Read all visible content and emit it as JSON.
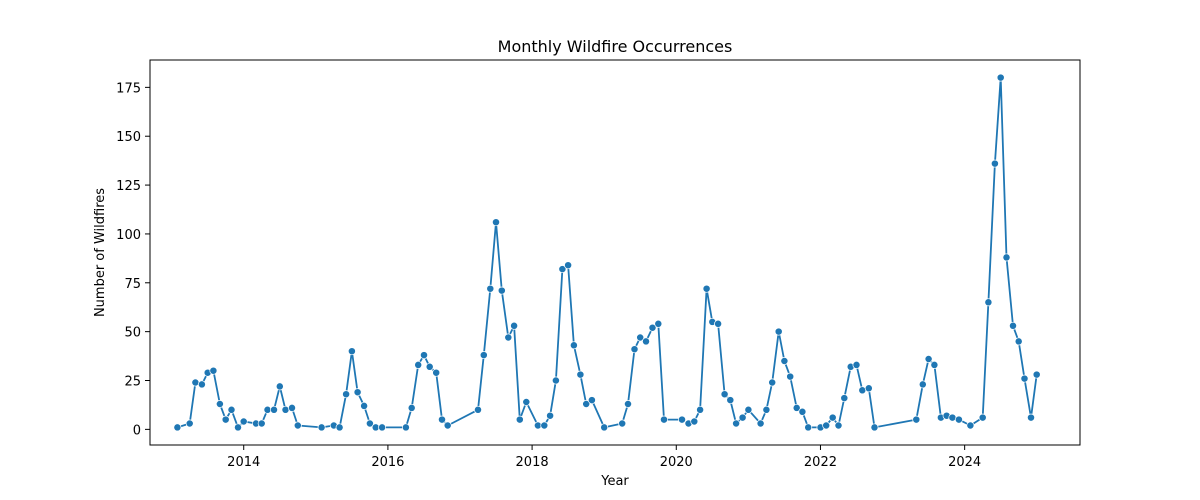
{
  "chart_data": {
    "type": "line",
    "title": "Monthly Wildfire Occurrences",
    "xlabel": "Year",
    "ylabel": "Number of Wildfires",
    "xlim": [
      2012.7,
      2025.6
    ],
    "ylim": [
      -8,
      189
    ],
    "x_ticks": [
      2014,
      2016,
      2018,
      2020,
      2022,
      2024
    ],
    "y_ticks": [
      0,
      25,
      50,
      75,
      100,
      125,
      150,
      175
    ],
    "grid": false,
    "marker": "circle",
    "color": "#1f77b4",
    "series": [
      {
        "points": [
          [
            2013.08,
            1
          ],
          [
            2013.25,
            3
          ],
          [
            2013.33,
            24
          ],
          [
            2013.42,
            23
          ],
          [
            2013.5,
            29
          ],
          [
            2013.58,
            30
          ],
          [
            2013.67,
            13
          ],
          [
            2013.75,
            5
          ],
          [
            2013.83,
            10
          ],
          [
            2013.92,
            1
          ],
          [
            2014.0,
            4
          ],
          [
            2014.17,
            3
          ],
          [
            2014.25,
            3
          ],
          [
            2014.33,
            10
          ],
          [
            2014.42,
            10
          ],
          [
            2014.5,
            22
          ],
          [
            2014.58,
            10
          ],
          [
            2014.67,
            11
          ],
          [
            2014.75,
            2
          ],
          [
            2015.08,
            1
          ],
          [
            2015.25,
            2
          ],
          [
            2015.33,
            1
          ],
          [
            2015.42,
            18
          ],
          [
            2015.5,
            40
          ],
          [
            2015.58,
            19
          ],
          [
            2015.67,
            12
          ],
          [
            2015.75,
            3
          ],
          [
            2015.83,
            1
          ],
          [
            2015.92,
            1
          ],
          [
            2016.25,
            1
          ],
          [
            2016.33,
            11
          ],
          [
            2016.42,
            33
          ],
          [
            2016.5,
            38
          ],
          [
            2016.58,
            32
          ],
          [
            2016.67,
            29
          ],
          [
            2016.75,
            5
          ],
          [
            2016.83,
            2
          ],
          [
            2017.25,
            10
          ],
          [
            2017.33,
            38
          ],
          [
            2017.42,
            72
          ],
          [
            2017.5,
            106
          ],
          [
            2017.58,
            71
          ],
          [
            2017.67,
            47
          ],
          [
            2017.75,
            53
          ],
          [
            2017.83,
            5
          ],
          [
            2017.92,
            14
          ],
          [
            2018.08,
            2
          ],
          [
            2018.17,
            2
          ],
          [
            2018.25,
            7
          ],
          [
            2018.33,
            25
          ],
          [
            2018.42,
            82
          ],
          [
            2018.5,
            84
          ],
          [
            2018.58,
            43
          ],
          [
            2018.67,
            28
          ],
          [
            2018.75,
            13
          ],
          [
            2018.83,
            15
          ],
          [
            2019.0,
            1
          ],
          [
            2019.25,
            3
          ],
          [
            2019.33,
            13
          ],
          [
            2019.42,
            41
          ],
          [
            2019.5,
            47
          ],
          [
            2019.58,
            45
          ],
          [
            2019.67,
            52
          ],
          [
            2019.75,
            54
          ],
          [
            2019.83,
            5
          ],
          [
            2020.08,
            5
          ],
          [
            2020.17,
            3
          ],
          [
            2020.25,
            4
          ],
          [
            2020.33,
            10
          ],
          [
            2020.42,
            72
          ],
          [
            2020.5,
            55
          ],
          [
            2020.58,
            54
          ],
          [
            2020.67,
            18
          ],
          [
            2020.75,
            15
          ],
          [
            2020.83,
            3
          ],
          [
            2020.92,
            6
          ],
          [
            2021.0,
            10
          ],
          [
            2021.17,
            3
          ],
          [
            2021.25,
            10
          ],
          [
            2021.33,
            24
          ],
          [
            2021.42,
            50
          ],
          [
            2021.5,
            35
          ],
          [
            2021.58,
            27
          ],
          [
            2021.67,
            11
          ],
          [
            2021.75,
            9
          ],
          [
            2021.83,
            1
          ],
          [
            2022.0,
            1
          ],
          [
            2022.08,
            2
          ],
          [
            2022.17,
            6
          ],
          [
            2022.25,
            2
          ],
          [
            2022.33,
            16
          ],
          [
            2022.42,
            32
          ],
          [
            2022.5,
            33
          ],
          [
            2022.58,
            20
          ],
          [
            2022.67,
            21
          ],
          [
            2022.75,
            1
          ],
          [
            2023.33,
            5
          ],
          [
            2023.42,
            23
          ],
          [
            2023.5,
            36
          ],
          [
            2023.58,
            33
          ],
          [
            2023.67,
            6
          ],
          [
            2023.75,
            7
          ],
          [
            2023.83,
            6
          ],
          [
            2023.92,
            5
          ],
          [
            2024.08,
            2
          ],
          [
            2024.25,
            6
          ],
          [
            2024.33,
            65
          ],
          [
            2024.42,
            136
          ],
          [
            2024.5,
            180
          ],
          [
            2024.58,
            88
          ],
          [
            2024.67,
            53
          ],
          [
            2024.75,
            45
          ],
          [
            2024.83,
            26
          ],
          [
            2024.92,
            6
          ],
          [
            2025.0,
            28
          ]
        ]
      }
    ]
  }
}
